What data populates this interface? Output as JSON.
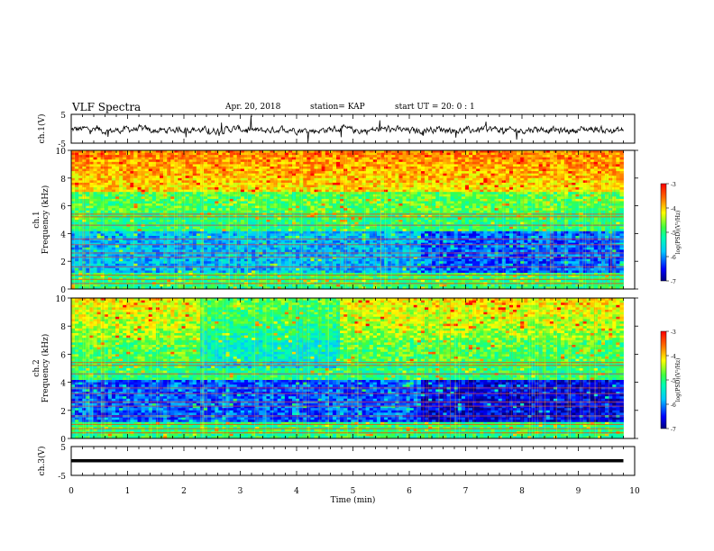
{
  "header": {
    "title": "VLF Spectra",
    "date": "Apr. 20, 2018",
    "station": "station= KAP",
    "start": "start  UT  =   20: 0  : 1"
  },
  "chart_data": [
    {
      "type": "line",
      "panel": "ch1-waveform",
      "ylabel": "ch.1(V)",
      "xlim": [
        0,
        10
      ],
      "ylim": [
        -5,
        5
      ],
      "y_ticks": [
        "5",
        "-5"
      ],
      "series": [
        {
          "values_description": "noisy waveform around -0.3 V, amplitude ~±2 V, ending near 9.8 min"
        }
      ]
    },
    {
      "type": "heatmap",
      "panel": "ch1-spectrogram",
      "ylabel": "ch.1",
      "ylabel2": "Frequency (kHz)",
      "xlim": [
        0,
        10
      ],
      "ylim": [
        0,
        10
      ],
      "y_ticks": [
        "0",
        "2",
        "4",
        "6",
        "8",
        "10"
      ],
      "data_end_min": 9.8,
      "colorbar": {
        "label": "log(PSD)(V²/Hz)",
        "range": [
          -7,
          -3
        ],
        "ticks": [
          "-3",
          "-4",
          "-5",
          "-6",
          "-7"
        ]
      }
    },
    {
      "type": "heatmap",
      "panel": "ch2-spectrogram",
      "ylabel": "ch.2",
      "ylabel2": "Frequency (kHz)",
      "xlim": [
        0,
        10
      ],
      "ylim": [
        0,
        10
      ],
      "y_ticks": [
        "0",
        "2",
        "4",
        "6",
        "8",
        "10"
      ],
      "data_end_min": 9.8,
      "colorbar": {
        "label": "log(PSD)(V²/Hz)",
        "range": [
          -7,
          -3
        ],
        "ticks": [
          "-3",
          "-4",
          "-5",
          "-6",
          "-7"
        ]
      }
    },
    {
      "type": "line",
      "panel": "ch3-waveform",
      "ylabel": "ch.3(V)",
      "xlim": [
        0,
        10
      ],
      "ylim": [
        -5,
        5
      ],
      "y_ticks": [
        "5",
        "-5"
      ],
      "series": [
        {
          "values_description": "flat line near 0 V"
        }
      ]
    }
  ],
  "x_axis": {
    "label": "Time (min)",
    "ticks": [
      "0",
      "1",
      "2",
      "3",
      "4",
      "5",
      "6",
      "7",
      "8",
      "9",
      "10"
    ]
  }
}
